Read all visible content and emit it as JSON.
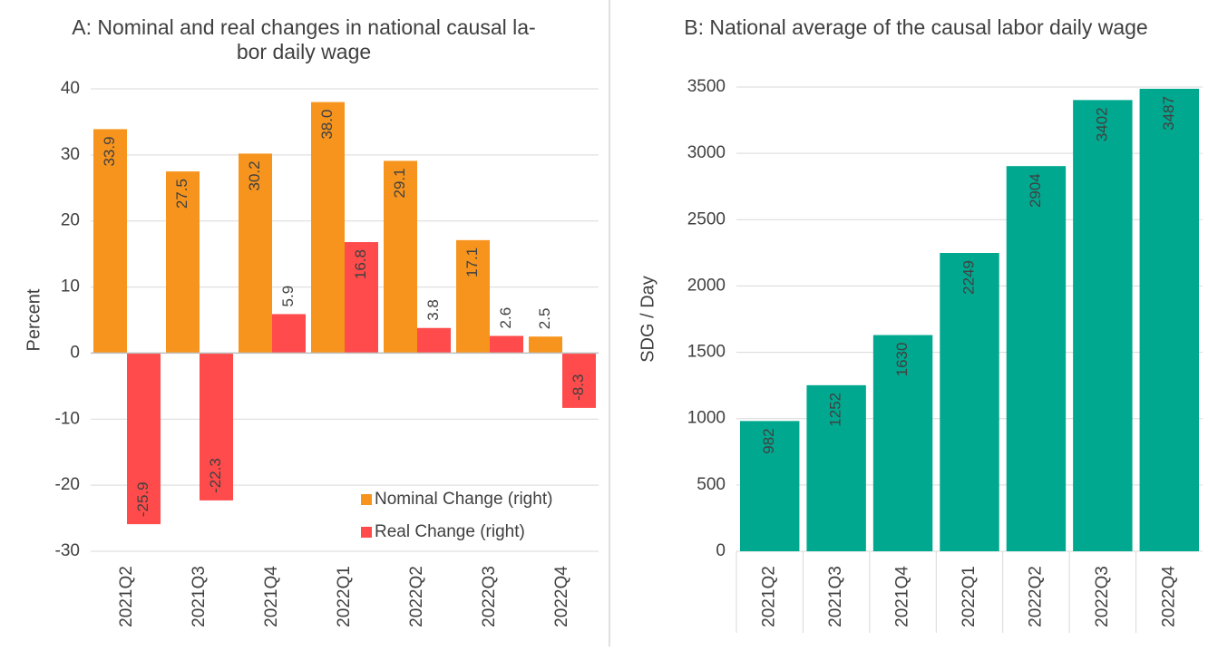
{
  "chart_data": [
    {
      "type": "bar",
      "title": [
        "A: Nominal and real changes in national causal la-",
        "bor daily wage"
      ],
      "y_label": "Percent",
      "categories": [
        "2021Q2",
        "2021Q3",
        "2021Q4",
        "2022Q1",
        "2022Q2",
        "2022Q3",
        "2022Q4"
      ],
      "series": [
        {
          "name": "Nominal Change (right)",
          "color": "#f7941d",
          "values": [
            33.9,
            27.5,
            30.2,
            38.0,
            29.1,
            17.1,
            2.5
          ],
          "value_labels": [
            "33.9",
            "27.5",
            "30.2",
            "38.0",
            "29.1",
            "17.1",
            "2.5"
          ]
        },
        {
          "name": "Real Change (right)",
          "color": "#ff4b4b",
          "values": [
            -25.9,
            -22.3,
            5.9,
            16.8,
            3.8,
            2.6,
            -8.3
          ],
          "value_labels": [
            "-25.9",
            "-22.3",
            "5.9",
            "16.8",
            "3.8",
            "2.6",
            "-8.3"
          ]
        }
      ],
      "ylim": [
        -30,
        40
      ],
      "yticks": [
        -30,
        -20,
        -10,
        0,
        10,
        20,
        30,
        40
      ],
      "grid": true,
      "legend": "lower right"
    },
    {
      "type": "bar",
      "title": [
        "B:  National average of the causal labor daily wage"
      ],
      "y_label": "SDG / Day",
      "categories": [
        "2021Q2",
        "2021Q3",
        "2021Q4",
        "2022Q1",
        "2022Q2",
        "2022Q3",
        "2022Q4"
      ],
      "series": [
        {
          "name": "National average",
          "color": "#00a88f",
          "values": [
            982,
            1252,
            1630,
            2249,
            2904,
            3402,
            3487
          ]
        }
      ],
      "ylim": [
        0,
        3500
      ],
      "yticks": [
        0,
        500,
        1000,
        1500,
        2000,
        2500,
        3000,
        3500
      ],
      "grid": true,
      "legend": "none"
    }
  ]
}
